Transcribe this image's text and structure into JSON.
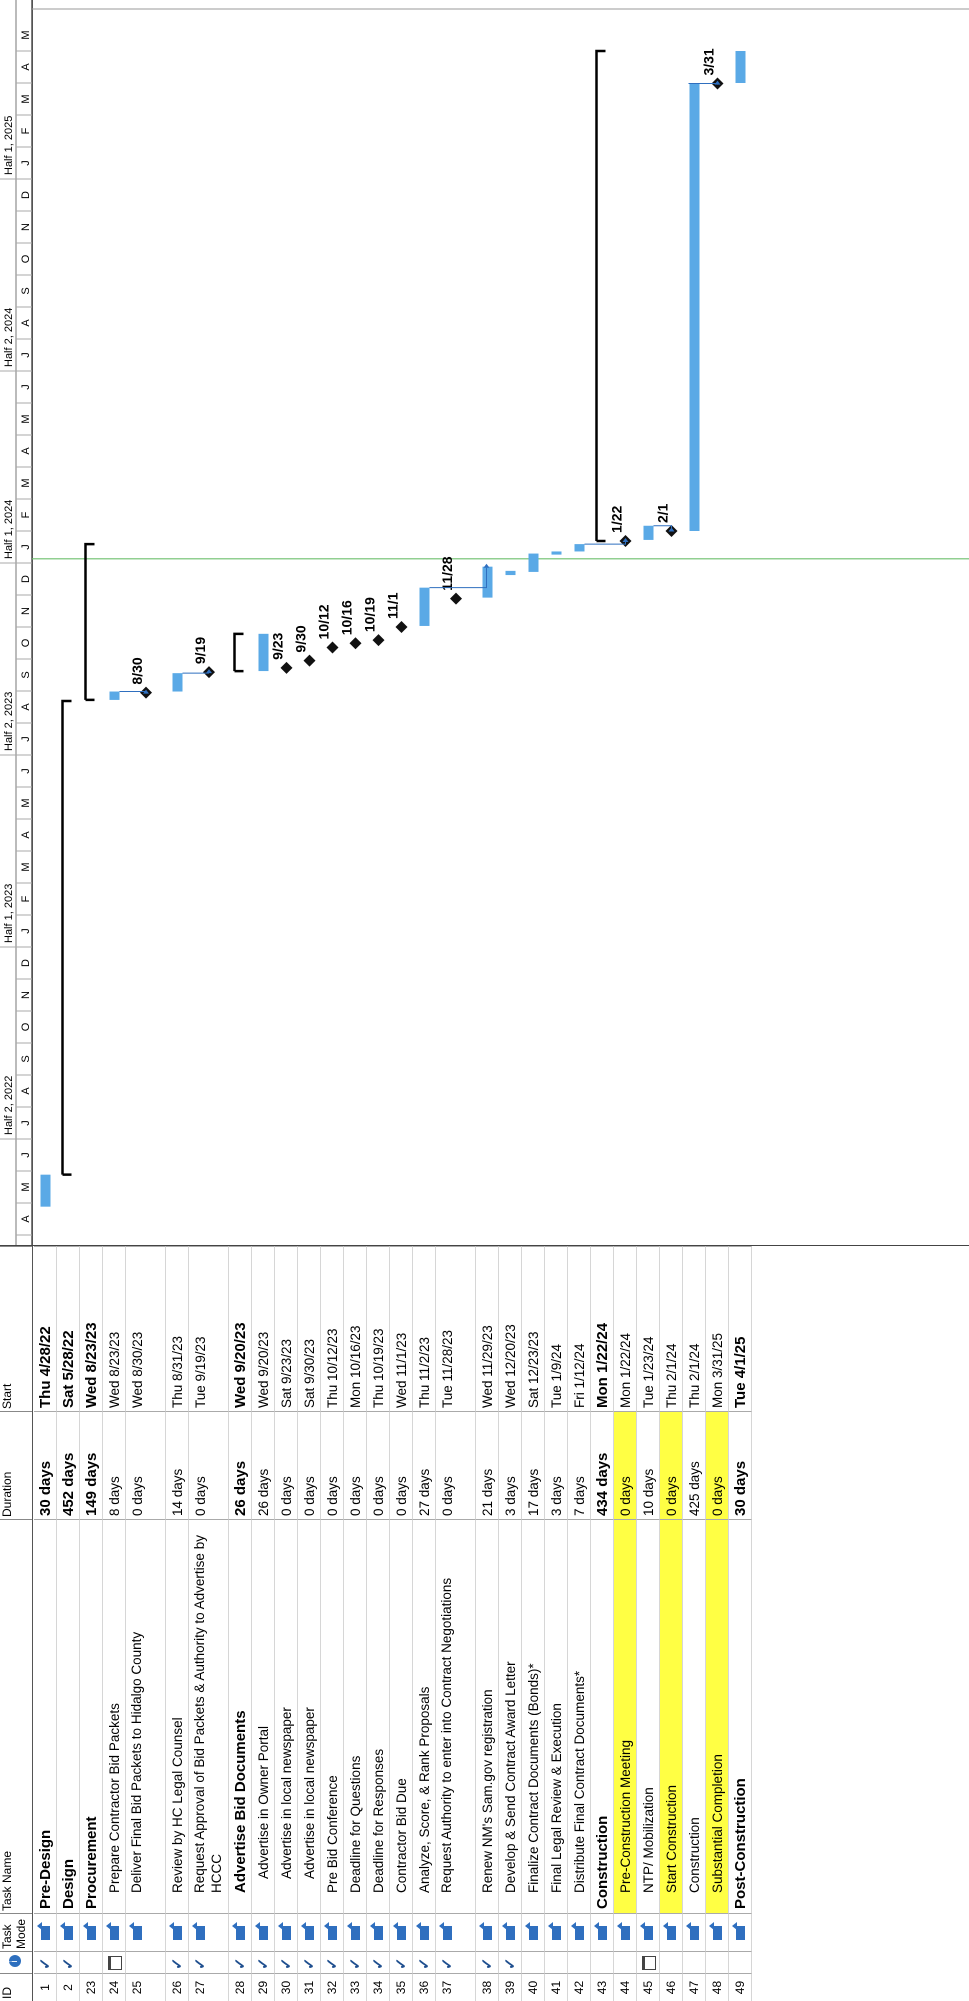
{
  "columns": {
    "id": "ID",
    "mode": "Task Mode",
    "name": "Task Name",
    "duration": "Duration",
    "start": "Start"
  },
  "timescale": {
    "halves": [
      "Half 2, 2022",
      "Half 1, 2023",
      "Half 2, 2023",
      "Half 1, 2024",
      "Half 2, 2024",
      "Half 1, 2025"
    ],
    "months": [
      "A",
      "M",
      "J",
      "J",
      "A",
      "S",
      "O",
      "N",
      "D",
      "J",
      "F",
      "M",
      "A",
      "M",
      "J",
      "J",
      "A",
      "S",
      "O",
      "N",
      "D",
      "J",
      "F",
      "M",
      "A",
      "M",
      "J",
      "J",
      "A",
      "S",
      "O",
      "N",
      "D",
      "J",
      "F",
      "M",
      "A",
      "M"
    ]
  },
  "tasks": [
    {
      "id": "1",
      "done": true,
      "name": "Pre-Design",
      "duration": "30 days",
      "start": "Thu 4/28/22",
      "bold": true
    },
    {
      "id": "2",
      "done": true,
      "name": "Design",
      "duration": "452 days",
      "start": "Sat 5/28/22",
      "bold": true
    },
    {
      "id": "23",
      "name": "Procurement",
      "duration": "149 days",
      "start": "Wed 8/23/23",
      "bold": true
    },
    {
      "id": "24",
      "cal": true,
      "name": "Prepare Contractor Bid Packets",
      "duration": "8 days",
      "start": "Wed 8/23/23",
      "indent": true
    },
    {
      "id": "25",
      "name": "Deliver Final Bid Packets to Hidalgo County",
      "duration": "0 days",
      "start": "Wed 8/30/23",
      "indent": true,
      "tall": true
    },
    {
      "id": "26",
      "done": true,
      "name": "Review by HC Legal Counsel",
      "duration": "14 days",
      "start": "Thu 8/31/23",
      "indent": true
    },
    {
      "id": "27",
      "done": true,
      "name": "Request Approval of Bid Packets & Authority to Advertise by HCCC",
      "duration": "0 days",
      "start": "Tue 9/19/23",
      "indent": true,
      "tall": true
    },
    {
      "id": "28",
      "done": true,
      "name": "Advertise Bid Documents",
      "duration": "26 days",
      "start": "Wed 9/20/23",
      "bold": true,
      "indent": true
    },
    {
      "id": "29",
      "done": true,
      "name": "Advertise in Owner Portal",
      "duration": "26 days",
      "start": "Wed 9/20/23",
      "indent2": true
    },
    {
      "id": "30",
      "done": true,
      "name": "Advertise in local newspaper",
      "duration": "0 days",
      "start": "Sat 9/23/23",
      "indent2": true
    },
    {
      "id": "31",
      "done": true,
      "name": "Advertise in local newspaper",
      "duration": "0 days",
      "start": "Sat 9/30/23",
      "indent2": true
    },
    {
      "id": "32",
      "done": true,
      "name": "Pre Bid Conference",
      "duration": "0 days",
      "start": "Thu 10/12/23",
      "indent": true
    },
    {
      "id": "33",
      "done": true,
      "name": "Deadline for Questions",
      "duration": "0 days",
      "start": "Mon 10/16/23",
      "indent": true
    },
    {
      "id": "34",
      "done": true,
      "name": "Deadline for Responses",
      "duration": "0 days",
      "start": "Thu 10/19/23",
      "indent": true
    },
    {
      "id": "35",
      "done": true,
      "name": "Contractor Bid Due",
      "duration": "0 days",
      "start": "Wed 11/1/23",
      "indent": true
    },
    {
      "id": "36",
      "done": true,
      "name": "Analyze, Score, & Rank Proposals",
      "duration": "27 days",
      "start": "Thu 11/2/23",
      "indent": true
    },
    {
      "id": "37",
      "done": true,
      "name": "Request Authority to enter into Contract Negotiations",
      "duration": "0 days",
      "start": "Tue 11/28/23",
      "indent": true,
      "tall": true
    },
    {
      "id": "38",
      "done": true,
      "name": "Renew NM's Sam.gov registration",
      "duration": "21 days",
      "start": "Wed 11/29/23",
      "indent": true
    },
    {
      "id": "39",
      "done": true,
      "name": "Develop & Send Contract Award Letter",
      "duration": "3 days",
      "start": "Wed 12/20/23",
      "indent": true
    },
    {
      "id": "40",
      "name": "Finalize Contract Documents (Bonds)*",
      "duration": "17 days",
      "start": "Sat 12/23/23",
      "indent": true
    },
    {
      "id": "41",
      "name": "Final Legal Review & Execution",
      "duration": "3 days",
      "start": "Tue 1/9/24",
      "indent": true
    },
    {
      "id": "42",
      "name": "Distribute Final Contract Documents*",
      "duration": "7 days",
      "start": "Fri 1/12/24",
      "indent": true
    },
    {
      "id": "43",
      "name": "Construction",
      "duration": "434 days",
      "start": "Mon 1/22/24",
      "bold": true
    },
    {
      "id": "44",
      "name": "Pre-Construction Meeting",
      "duration": "0 days",
      "start": "Mon 1/22/24",
      "indent": true,
      "highlight": true
    },
    {
      "id": "45",
      "cal": true,
      "name": "NTP/ Mobilization",
      "duration": "10 days",
      "start": "Tue 1/23/24",
      "indent": true
    },
    {
      "id": "46",
      "name": "Start Construction",
      "duration": "0 days",
      "start": "Thu 2/1/24",
      "indent": true,
      "highlight": true
    },
    {
      "id": "47",
      "name": "Construction",
      "duration": "425 days",
      "start": "Thu 2/1/24",
      "indent": true
    },
    {
      "id": "48",
      "name": "Substantial Completion",
      "duration": "0 days",
      "start": "Mon 3/31/25",
      "indent": true,
      "highlight": true
    },
    {
      "id": "49",
      "name": "Post-Construction",
      "duration": "30 days",
      "start": "Tue 4/1/25",
      "bold": true
    }
  ],
  "milestones": [
    "8/30",
    "9/19",
    "9/23",
    "9/30",
    "10/12",
    "10/16",
    "10/19",
    "11/1",
    "11/28",
    "1/22",
    "2/1",
    "3/31"
  ],
  "colors": {
    "bar": "#5aa9e6",
    "summary": "#000000",
    "today_line": "#6dbf6d",
    "highlight": "#ffff44",
    "check": "#1f4f8f"
  }
}
